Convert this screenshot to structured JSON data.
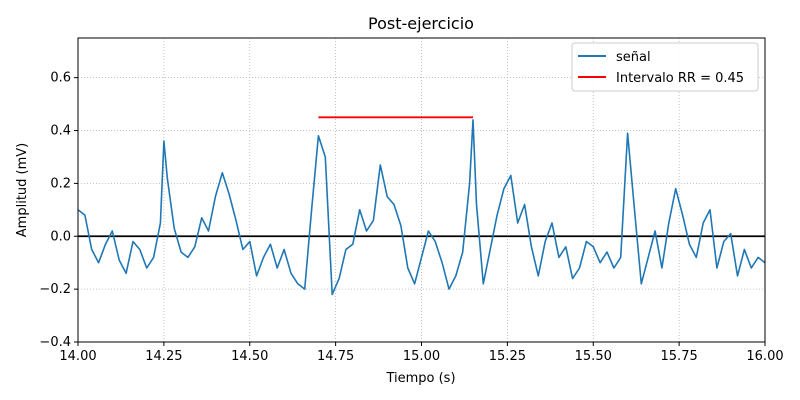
{
  "chart_data": {
    "type": "line",
    "title": "Post-ejercicio",
    "xlabel": "Tiempo (s)",
    "ylabel": "Amplitud (mV)",
    "xlim": [
      14.0,
      16.0
    ],
    "ylim": [
      -0.4,
      0.75
    ],
    "x_ticks": [
      "14.00",
      "14.25",
      "14.50",
      "14.75",
      "15.00",
      "15.25",
      "15.50",
      "15.75",
      "16.00"
    ],
    "y_ticks": [
      "−0.4",
      "−0.2",
      "0.0",
      "0.2",
      "0.4",
      "0.6"
    ],
    "grid": true,
    "legend_position": "top-right",
    "zero_line": 0.0,
    "series": [
      {
        "name": "señal",
        "color": "#1f77b4",
        "x": [
          14.0,
          14.02,
          14.04,
          14.06,
          14.08,
          14.1,
          14.12,
          14.14,
          14.16,
          14.18,
          14.2,
          14.22,
          14.24,
          14.25,
          14.26,
          14.28,
          14.3,
          14.32,
          14.34,
          14.36,
          14.38,
          14.4,
          14.42,
          14.44,
          14.46,
          14.48,
          14.5,
          14.52,
          14.54,
          14.56,
          14.58,
          14.6,
          14.62,
          14.64,
          14.66,
          14.68,
          14.7,
          14.72,
          14.74,
          14.76,
          14.78,
          14.8,
          14.82,
          14.84,
          14.86,
          14.88,
          14.9,
          14.92,
          14.94,
          14.96,
          14.98,
          15.0,
          15.02,
          15.04,
          15.06,
          15.08,
          15.1,
          15.12,
          15.14,
          15.15,
          15.16,
          15.18,
          15.2,
          15.22,
          15.24,
          15.26,
          15.28,
          15.3,
          15.32,
          15.34,
          15.36,
          15.38,
          15.4,
          15.42,
          15.44,
          15.46,
          15.48,
          15.5,
          15.52,
          15.54,
          15.56,
          15.58,
          15.6,
          15.62,
          15.64,
          15.66,
          15.68,
          15.7,
          15.72,
          15.74,
          15.76,
          15.78,
          15.8,
          15.82,
          15.84,
          15.86,
          15.88,
          15.9,
          15.92,
          15.94,
          15.96,
          15.98,
          16.0
        ],
        "values": [
          0.1,
          0.08,
          -0.05,
          -0.1,
          -0.03,
          0.02,
          -0.09,
          -0.14,
          -0.02,
          -0.05,
          -0.12,
          -0.08,
          0.05,
          0.36,
          0.22,
          0.03,
          -0.06,
          -0.08,
          -0.04,
          0.07,
          0.02,
          0.15,
          0.24,
          0.16,
          0.06,
          -0.05,
          -0.02,
          -0.15,
          -0.08,
          -0.03,
          -0.12,
          -0.05,
          -0.14,
          -0.18,
          -0.2,
          0.1,
          0.38,
          0.3,
          -0.22,
          -0.16,
          -0.05,
          -0.03,
          0.1,
          0.02,
          0.06,
          0.27,
          0.15,
          0.12,
          0.04,
          -0.12,
          -0.18,
          -0.08,
          0.02,
          -0.02,
          -0.1,
          -0.2,
          -0.15,
          -0.06,
          0.2,
          0.44,
          0.12,
          -0.18,
          -0.05,
          0.08,
          0.18,
          0.23,
          0.05,
          0.12,
          -0.04,
          -0.15,
          -0.02,
          0.05,
          -0.08,
          -0.04,
          -0.16,
          -0.12,
          -0.02,
          -0.04,
          -0.1,
          -0.06,
          -0.12,
          -0.08,
          0.39,
          0.1,
          -0.18,
          -0.08,
          0.02,
          -0.12,
          0.05,
          0.18,
          0.08,
          -0.03,
          -0.08,
          0.05,
          0.1,
          -0.12,
          -0.02,
          0.01,
          -0.15,
          -0.05,
          -0.12,
          -0.08,
          -0.1
        ]
      },
      {
        "name": "Intervalo RR = 0.45",
        "color": "#ff0000",
        "x": [
          14.7,
          15.15
        ],
        "values": [
          0.45,
          0.45
        ]
      }
    ]
  }
}
